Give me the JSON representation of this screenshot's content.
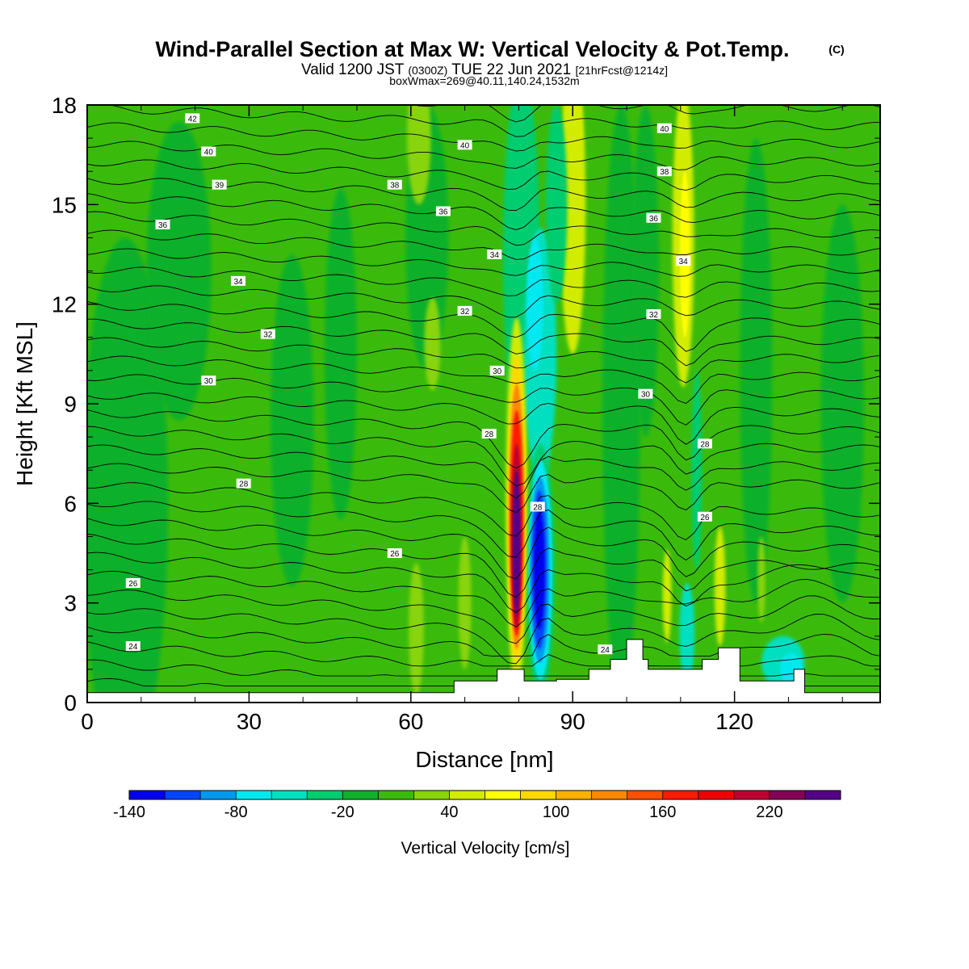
{
  "page": {
    "title": "Wind-Parallel Section at Max W: Vertical Velocity & Pot.Temp.",
    "title_mark": "(C)",
    "subtitle": {
      "part1": "Valid 1200 JST",
      "part2": "(0300Z)",
      "part3": "TUE 22 Jun 2021",
      "part4": "[21hrFcst@1214z]"
    },
    "subtitle2": "boxWmax=269@40.11,140.24,1532m"
  },
  "chart_data": {
    "type": "contour-section",
    "xlabel": "Distance [nm]",
    "ylabel": "Height [Kft MSL]",
    "xlim": [
      0,
      147
    ],
    "ylim": [
      0,
      18
    ],
    "x_ticks": [
      0,
      30,
      60,
      90,
      120
    ],
    "y_ticks": [
      0,
      3,
      6,
      9,
      12,
      15,
      18
    ],
    "colorbar": {
      "title": "Vertical Velocity [cm/s]",
      "levels": [
        -140,
        -120,
        -100,
        -80,
        -60,
        -40,
        -20,
        0,
        20,
        40,
        60,
        80,
        100,
        120,
        140,
        160,
        180,
        200,
        220,
        240,
        260
      ],
      "labels": [
        "-140",
        "-80",
        "-20",
        "40",
        "100",
        "160",
        "220"
      ],
      "colors": [
        "#0000ee",
        "#0044ff",
        "#0099ee",
        "#00e8f0",
        "#00e0c0",
        "#00cc70",
        "#11b02a",
        "#3abb0c",
        "#88d40a",
        "#d2ec00",
        "#ffff00",
        "#ffd800",
        "#ffb000",
        "#ff8800",
        "#ff5000",
        "#ff1a00",
        "#ee0000",
        "#bb0033",
        "#880055",
        "#550088"
      ]
    },
    "background_w_class": "0 to 20",
    "updraft_core": {
      "x": 79.5,
      "z_range": [
        0.5,
        11.5
      ],
      "max_w": 269
    },
    "downdraft_core": {
      "x": 84,
      "z_range": [
        0.5,
        6.5
      ],
      "min_w": -140
    },
    "secondary_features": [
      {
        "x": 81,
        "z_range": [
          6,
          18
        ],
        "w_class": "-60 to -20"
      },
      {
        "x": 90,
        "z_range": [
          10,
          18
        ],
        "w_class": "20 to 60"
      },
      {
        "x": 110.5,
        "z_range": [
          11,
          18
        ],
        "w_class": "40 to 80"
      },
      {
        "x": 111,
        "z_range": [
          0.5,
          3.5
        ],
        "w_class": "-60 to -40"
      },
      {
        "x": 130,
        "z_range": [
          0.5,
          2
        ],
        "w_class": "-80 to -40"
      }
    ],
    "terrain_profile": [
      [
        0,
        0.3
      ],
      [
        68,
        0.3
      ],
      [
        68,
        0.65
      ],
      [
        76,
        0.65
      ],
      [
        76,
        1.0
      ],
      [
        81,
        1.0
      ],
      [
        81,
        0.65
      ],
      [
        87,
        0.65
      ],
      [
        87,
        0.7
      ],
      [
        93,
        0.7
      ],
      [
        93,
        1.0
      ],
      [
        97,
        1.0
      ],
      [
        97,
        1.3
      ],
      [
        100,
        1.3
      ],
      [
        100,
        1.9
      ],
      [
        103,
        1.9
      ],
      [
        103,
        1.3
      ],
      [
        104,
        1.3
      ],
      [
        104,
        1.0
      ],
      [
        114,
        1.0
      ],
      [
        114,
        1.3
      ],
      [
        117,
        1.3
      ],
      [
        117,
        1.65
      ],
      [
        121,
        1.65
      ],
      [
        121,
        0.65
      ],
      [
        131,
        0.65
      ],
      [
        131,
        1.0
      ],
      [
        133,
        1.0
      ],
      [
        133,
        0.3
      ],
      [
        147,
        0.3
      ]
    ],
    "theta_labels": [
      {
        "text": "42",
        "x": 19.5,
        "z": 17.6
      },
      {
        "text": "40",
        "x": 22.5,
        "z": 16.6
      },
      {
        "text": "39",
        "x": 24.5,
        "z": 15.6
      },
      {
        "text": "36",
        "x": 14,
        "z": 14.4
      },
      {
        "text": "34",
        "x": 28,
        "z": 12.7
      },
      {
        "text": "32",
        "x": 33.5,
        "z": 11.1
      },
      {
        "text": "30",
        "x": 22.5,
        "z": 9.7
      },
      {
        "text": "28",
        "x": 29,
        "z": 6.6
      },
      {
        "text": "26",
        "x": 8.5,
        "z": 3.6
      },
      {
        "text": "24",
        "x": 8.5,
        "z": 1.7
      },
      {
        "text": "38",
        "x": 57,
        "z": 15.6
      },
      {
        "text": "40",
        "x": 70,
        "z": 16.8
      },
      {
        "text": "36",
        "x": 66,
        "z": 14.8
      },
      {
        "text": "34",
        "x": 75.5,
        "z": 13.5
      },
      {
        "text": "32",
        "x": 70,
        "z": 11.8
      },
      {
        "text": "30",
        "x": 76,
        "z": 10.0
      },
      {
        "text": "28",
        "x": 74.5,
        "z": 8.1
      },
      {
        "text": "28",
        "x": 83.5,
        "z": 5.9
      },
      {
        "text": "26",
        "x": 57,
        "z": 4.5
      },
      {
        "text": "24",
        "x": 96,
        "z": 1.6
      },
      {
        "text": "40",
        "x": 107,
        "z": 17.3
      },
      {
        "text": "38",
        "x": 107,
        "z": 16.0
      },
      {
        "text": "36",
        "x": 105,
        "z": 14.6
      },
      {
        "text": "34",
        "x": 110.5,
        "z": 13.3
      },
      {
        "text": "32",
        "x": 105,
        "z": 11.7
      },
      {
        "text": "30",
        "x": 103.5,
        "z": 9.3
      },
      {
        "text": "28",
        "x": 114.5,
        "z": 7.8
      },
      {
        "text": "26",
        "x": 114.5,
        "z": 5.6
      }
    ]
  }
}
